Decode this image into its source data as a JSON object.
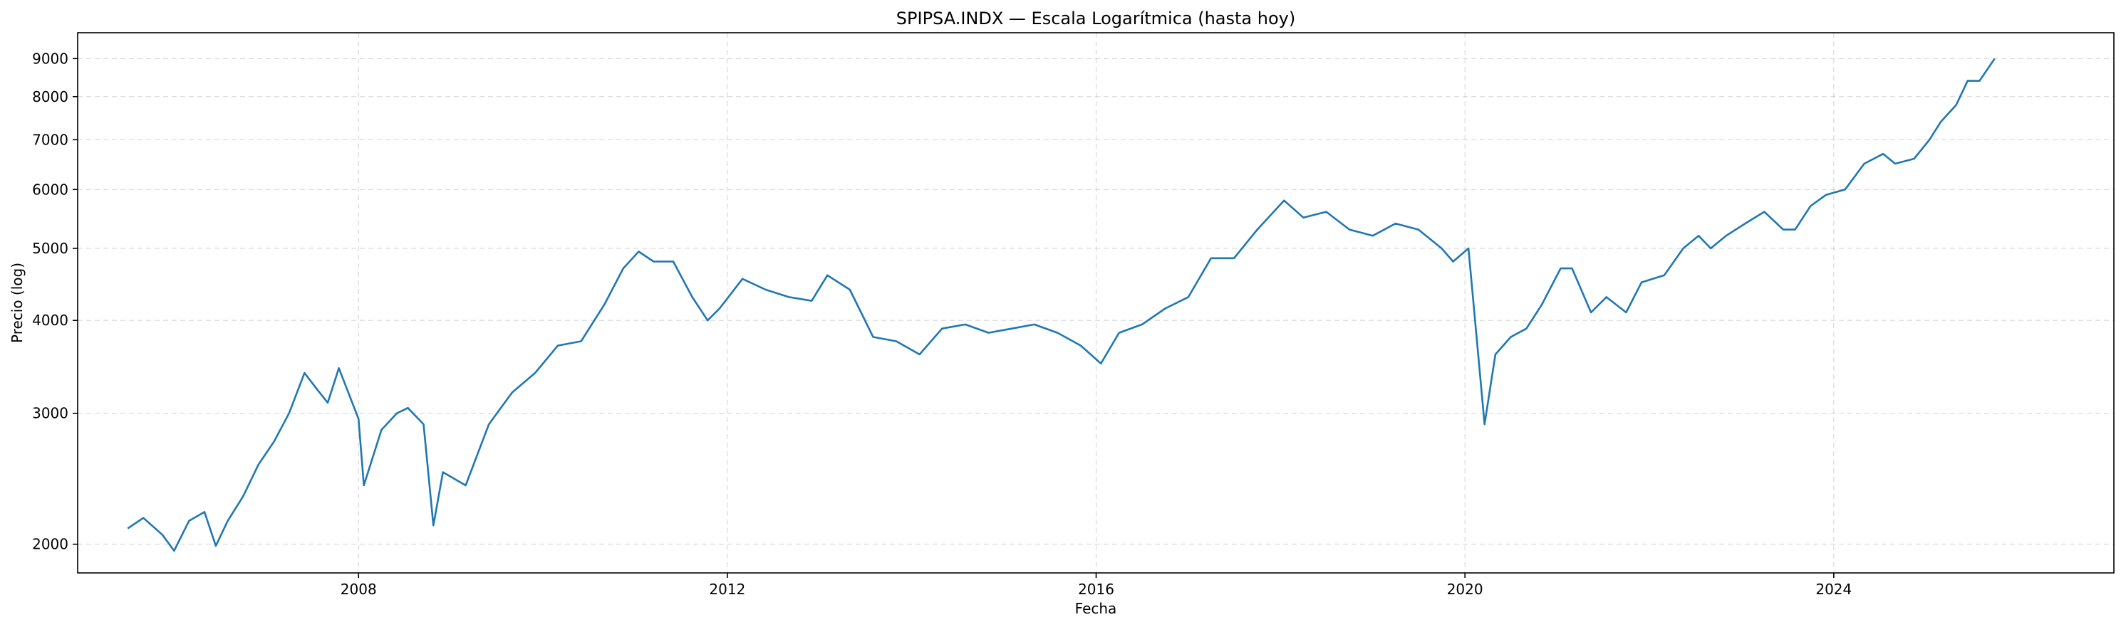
{
  "chart_data": {
    "type": "line",
    "title": "SPIPSA.INDX — Escala Logarítmica (hasta hoy)",
    "xlabel": "Fecha",
    "ylabel": "Precio (log)",
    "yscale": "log",
    "grid": true,
    "x_ticks": [
      "2008",
      "2012",
      "2016",
      "2020",
      "2024"
    ],
    "y_ticks": [
      "2000",
      "3000",
      "4000",
      "5000",
      "6000",
      "7000",
      "8000",
      "9000"
    ],
    "xlim": [
      "2004-12-15",
      "2027-01-15"
    ],
    "ylim": [
      1830,
      9750
    ],
    "colors": {
      "series": "#1f77b4"
    },
    "series": [
      {
        "x": [
          "2005-07-01",
          "2005-09-01",
          "2005-11-15",
          "2006-01-01",
          "2006-03-01",
          "2006-05-01",
          "2006-06-15",
          "2006-08-01",
          "2006-10-01",
          "2006-12-01",
          "2007-02-01",
          "2007-04-01",
          "2007-06-01",
          "2007-07-15",
          "2007-09-01",
          "2007-10-15",
          "2008-01-01",
          "2008-01-22",
          "2008-04-01",
          "2008-06-01",
          "2008-07-15",
          "2008-09-15",
          "2008-10-24",
          "2008-12-01",
          "2009-03-01",
          "2009-06-01",
          "2009-09-01",
          "2009-12-01",
          "2010-03-01",
          "2010-06-01",
          "2010-09-01",
          "2010-11-15",
          "2011-01-15",
          "2011-03-15",
          "2011-06-01",
          "2011-08-15",
          "2011-10-15",
          "2011-12-01",
          "2012-03-01",
          "2012-06-01",
          "2012-09-01",
          "2012-12-01",
          "2013-02-01",
          "2013-05-01",
          "2013-08-01",
          "2013-11-01",
          "2014-02-01",
          "2014-05-01",
          "2014-08-01",
          "2014-11-01",
          "2015-02-01",
          "2015-05-01",
          "2015-08-01",
          "2015-11-01",
          "2016-01-20",
          "2016-04-01",
          "2016-07-01",
          "2016-10-01",
          "2017-01-01",
          "2017-04-01",
          "2017-07-01",
          "2017-10-01",
          "2018-01-15",
          "2018-04-01",
          "2018-07-01",
          "2018-10-01",
          "2019-01-01",
          "2019-04-01",
          "2019-07-01",
          "2019-10-01",
          "2019-11-15",
          "2020-01-15",
          "2020-03-19",
          "2020-05-01",
          "2020-07-01",
          "2020-09-01",
          "2020-11-01",
          "2021-01-15",
          "2021-03-01",
          "2021-05-15",
          "2021-07-15",
          "2021-10-01",
          "2021-12-01",
          "2022-03-01",
          "2022-05-15",
          "2022-07-15",
          "2022-09-01",
          "2022-11-01",
          "2023-01-15",
          "2023-04-01",
          "2023-06-15",
          "2023-08-01",
          "2023-10-01",
          "2023-12-01",
          "2024-02-15",
          "2024-05-01",
          "2024-07-15",
          "2024-09-01",
          "2024-11-15",
          "2025-01-15",
          "2025-03-01",
          "2025-05-01",
          "2025-06-15",
          "2025-08-01",
          "2025-09-30"
        ],
        "y": [
          2100,
          2170,
          2060,
          1960,
          2150,
          2210,
          1990,
          2150,
          2320,
          2560,
          2750,
          3000,
          3400,
          3250,
          3100,
          3450,
          2950,
          2400,
          2850,
          3000,
          3050,
          2900,
          2120,
          2500,
          2400,
          2900,
          3200,
          3400,
          3700,
          3750,
          4200,
          4700,
          4950,
          4800,
          4800,
          4300,
          4000,
          4150,
          4550,
          4400,
          4300,
          4250,
          4600,
          4400,
          3800,
          3750,
          3600,
          3900,
          3950,
          3850,
          3900,
          3950,
          3850,
          3700,
          3500,
          3850,
          3950,
          4150,
          4300,
          4850,
          4850,
          5300,
          5800,
          5500,
          5600,
          5300,
          5200,
          5400,
          5300,
          5000,
          4800,
          5000,
          2900,
          3600,
          3800,
          3900,
          4200,
          4700,
          4700,
          4100,
          4300,
          4100,
          4500,
          4600,
          5000,
          5200,
          5000,
          5200,
          5400,
          5600,
          5300,
          5300,
          5700,
          5900,
          6000,
          6500,
          6700,
          6500,
          6600,
          7000,
          7400,
          7800,
          8400,
          8400,
          9000
        ]
      }
    ]
  }
}
